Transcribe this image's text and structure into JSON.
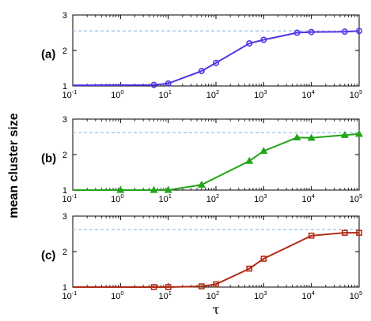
{
  "ylabel": "mean cluster size",
  "xlabel": "τ",
  "chart_data": [
    {
      "type": "line",
      "panel_label": "(a)",
      "xscale": "log",
      "xlim": [
        0.1,
        100000
      ],
      "ylim": [
        1,
        3
      ],
      "x_tick_labels": [
        "10^-1",
        "10^0",
        "10^1",
        "10^2",
        "10^3",
        "10^4",
        "10^5"
      ],
      "y_tick_labels": [
        "1",
        "2",
        "3"
      ],
      "reference_line": 2.55,
      "marker": "circle",
      "color": "#5533e8",
      "reference_color": "#a9c8f0",
      "x": [
        0.1,
        5,
        10,
        50,
        100,
        500,
        1000,
        5000,
        10000,
        50000,
        100000
      ],
      "y": [
        1.02,
        1.03,
        1.07,
        1.42,
        1.65,
        2.2,
        2.3,
        2.5,
        2.52,
        2.53,
        2.55
      ]
    },
    {
      "type": "line",
      "panel_label": "(b)",
      "xscale": "log",
      "xlim": [
        0.1,
        100000
      ],
      "ylim": [
        1,
        3
      ],
      "x_tick_labels": [
        "10^-1",
        "10^0",
        "10^1",
        "10^2",
        "10^3",
        "10^4",
        "10^5"
      ],
      "y_tick_labels": [
        "1",
        "2",
        "3"
      ],
      "reference_line": 2.62,
      "marker": "triangle",
      "color": "#22a51a",
      "reference_color": "#a9c8f0",
      "x": [
        0.1,
        1,
        5,
        10,
        50,
        500,
        1000,
        5000,
        10000,
        50000,
        100000
      ],
      "y": [
        1.0,
        1.0,
        1.0,
        1.0,
        1.15,
        1.82,
        2.1,
        2.48,
        2.47,
        2.55,
        2.58
      ]
    },
    {
      "type": "line",
      "panel_label": "(c)",
      "xscale": "log",
      "xlim": [
        0.1,
        100000
      ],
      "ylim": [
        1,
        3
      ],
      "x_tick_labels": [
        "10^-1",
        "10^0",
        "10^1",
        "10^2",
        "10^3",
        "10^4",
        "10^5"
      ],
      "y_tick_labels": [
        "1",
        "2",
        "3"
      ],
      "reference_line": 2.62,
      "marker": "square",
      "color": "#b02a14",
      "reference_color": "#a9c8f0",
      "x": [
        0.1,
        5,
        10,
        50,
        100,
        500,
        1000,
        10000,
        50000,
        100000
      ],
      "y": [
        1.0,
        1.0,
        1.0,
        1.02,
        1.08,
        1.52,
        1.8,
        2.45,
        2.53,
        2.53
      ]
    }
  ]
}
